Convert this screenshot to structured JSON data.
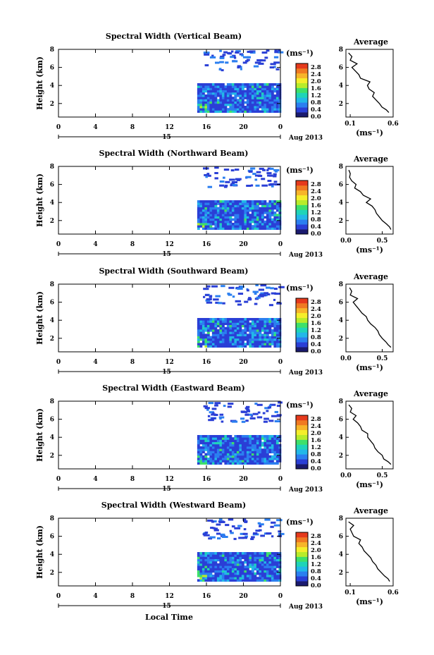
{
  "figure": {
    "xlabel": "Local Time",
    "date_label": "Aug 2013",
    "day_label": "15",
    "colorbar_unit": "(ms⁻¹)",
    "colorbar_ticks": [
      "2.8",
      "2.4",
      "2.0",
      "1.6",
      "1.2",
      "0.8",
      "0.4",
      "0.0"
    ],
    "colormap": [
      "#1a1a6e",
      "#2a3fd6",
      "#2b7ff0",
      "#22b8e8",
      "#1fd4b8",
      "#3ee06a",
      "#b8ec2a",
      "#f5ee2a",
      "#f7b52a",
      "#f07a22",
      "#e53a1c"
    ],
    "average_title": "Average",
    "average_xlabel": "(ms⁻¹)",
    "ylabel": "Height (km)",
    "xticks": [
      "0",
      "4",
      "8",
      "12",
      "16",
      "20",
      "0"
    ]
  },
  "chart_data": [
    {
      "type": "heatmap",
      "title": "Spectral Width (Vertical Beam)",
      "ylabel": "Height (km)",
      "xlabel": "",
      "x_ticks": [
        "0",
        "4",
        "8",
        "12",
        "16",
        "20",
        "0"
      ],
      "y_ticks": [
        "2",
        "4",
        "6",
        "8"
      ],
      "xlim": [
        0,
        24
      ],
      "ylim": [
        0.5,
        8
      ],
      "colorbar_range": [
        0.0,
        2.8
      ],
      "data_start_hour": 15,
      "average": {
        "type": "line",
        "title": "Average",
        "xlabel": "(ms⁻¹)",
        "x_ticks": [
          "0.1",
          "0.6"
        ],
        "x_tick_values": [
          0.1,
          0.6
        ],
        "y_ticks": [
          "2",
          "4",
          "6",
          "8"
        ],
        "xlim": [
          0.05,
          0.6
        ],
        "ylim": [
          0.5,
          8
        ],
        "height": [
          1.0,
          1.3,
          1.6,
          2.0,
          2.4,
          2.8,
          3.2,
          3.6,
          4.0,
          4.4,
          4.8,
          5.2,
          5.6,
          6.0,
          6.4,
          6.8,
          7.2,
          7.6
        ],
        "width": [
          0.55,
          0.52,
          0.47,
          0.44,
          0.4,
          0.36,
          0.38,
          0.32,
          0.3,
          0.33,
          0.22,
          0.2,
          0.16,
          0.12,
          0.18,
          0.1,
          0.12,
          0.08
        ]
      }
    },
    {
      "type": "heatmap",
      "title": "Spectral Width (Northward Beam)",
      "ylabel": "Height (km)",
      "xlabel": "",
      "x_ticks": [
        "0",
        "4",
        "8",
        "12",
        "16",
        "20",
        "0"
      ],
      "y_ticks": [
        "2",
        "4",
        "6",
        "8"
      ],
      "xlim": [
        0,
        24
      ],
      "ylim": [
        0.5,
        8
      ],
      "colorbar_range": [
        0.0,
        2.8
      ],
      "data_start_hour": 15,
      "average": {
        "type": "line",
        "title": "Average",
        "xlabel": "(ms⁻¹)",
        "x_ticks": [
          "0.0",
          "0.5"
        ],
        "x_tick_values": [
          0.0,
          0.5
        ],
        "y_ticks": [
          "2",
          "4",
          "6",
          "8"
        ],
        "xlim": [
          0.0,
          0.65
        ],
        "ylim": [
          0.5,
          8
        ],
        "height": [
          1.0,
          1.3,
          1.6,
          2.0,
          2.4,
          2.8,
          3.2,
          3.6,
          4.0,
          4.4,
          4.8,
          5.2,
          5.6,
          6.0,
          6.4,
          6.8,
          7.2,
          7.6
        ],
        "width": [
          0.62,
          0.6,
          0.56,
          0.5,
          0.46,
          0.42,
          0.4,
          0.36,
          0.28,
          0.34,
          0.24,
          0.2,
          0.12,
          0.14,
          0.08,
          0.05,
          0.06,
          0.04
        ]
      }
    },
    {
      "type": "heatmap",
      "title": "Spectral Width (Southward Beam)",
      "ylabel": "Height (km)",
      "xlabel": "",
      "x_ticks": [
        "0",
        "4",
        "8",
        "12",
        "16",
        "20",
        "0"
      ],
      "y_ticks": [
        "2",
        "4",
        "6",
        "8"
      ],
      "xlim": [
        0,
        24
      ],
      "ylim": [
        0.5,
        8
      ],
      "colorbar_range": [
        0.0,
        2.8
      ],
      "data_start_hour": 15,
      "average": {
        "type": "line",
        "title": "Average",
        "xlabel": "(ms⁻¹)",
        "x_ticks": [
          "0.0",
          "0.5"
        ],
        "x_tick_values": [
          0.0,
          0.5
        ],
        "y_ticks": [
          "2",
          "4",
          "6",
          "8"
        ],
        "xlim": [
          0.0,
          0.65
        ],
        "ylim": [
          0.5,
          8
        ],
        "height": [
          1.0,
          1.3,
          1.6,
          2.0,
          2.4,
          2.8,
          3.2,
          3.6,
          4.0,
          4.4,
          4.8,
          5.2,
          5.6,
          6.0,
          6.4,
          6.8,
          7.2,
          7.6
        ],
        "width": [
          0.62,
          0.58,
          0.55,
          0.5,
          0.46,
          0.44,
          0.4,
          0.34,
          0.3,
          0.28,
          0.22,
          0.18,
          0.14,
          0.1,
          0.16,
          0.06,
          0.08,
          0.05
        ]
      }
    },
    {
      "type": "heatmap",
      "title": "Spectral Width (Eastward Beam)",
      "ylabel": "Height (km)",
      "xlabel": "",
      "x_ticks": [
        "0",
        "4",
        "8",
        "12",
        "16",
        "20",
        "0"
      ],
      "y_ticks": [
        "2",
        "4",
        "6",
        "8"
      ],
      "xlim": [
        0,
        24
      ],
      "ylim": [
        0.5,
        8
      ],
      "colorbar_range": [
        0.0,
        2.8
      ],
      "data_start_hour": 15,
      "average": {
        "type": "line",
        "title": "Average",
        "xlabel": "(ms⁻¹)",
        "x_ticks": [
          "0.0",
          "0.5"
        ],
        "x_tick_values": [
          0.0,
          0.5
        ],
        "y_ticks": [
          "2",
          "4",
          "6",
          "8"
        ],
        "xlim": [
          0.0,
          0.65
        ],
        "ylim": [
          0.5,
          8
        ],
        "height": [
          1.0,
          1.3,
          1.6,
          2.0,
          2.4,
          2.8,
          3.2,
          3.6,
          4.0,
          4.4,
          4.8,
          5.2,
          5.6,
          6.0,
          6.4,
          6.8,
          7.2,
          7.6
        ],
        "width": [
          0.62,
          0.58,
          0.52,
          0.5,
          0.44,
          0.4,
          0.38,
          0.34,
          0.3,
          0.3,
          0.22,
          0.2,
          0.16,
          0.1,
          0.14,
          0.06,
          0.08,
          0.04
        ]
      }
    },
    {
      "type": "heatmap",
      "title": "Spectral Width (Westward Beam)",
      "ylabel": "Height (km)",
      "xlabel": "Local Time",
      "x_ticks": [
        "0",
        "4",
        "8",
        "12",
        "16",
        "20",
        "0"
      ],
      "y_ticks": [
        "2",
        "4",
        "6",
        "8"
      ],
      "xlim": [
        0,
        24
      ],
      "ylim": [
        0.5,
        8
      ],
      "colorbar_range": [
        0.0,
        2.8
      ],
      "data_start_hour": 15,
      "average": {
        "type": "line",
        "title": "Average",
        "xlabel": "(ms⁻¹)",
        "x_ticks": [
          "0.1",
          "0.6"
        ],
        "x_tick_values": [
          0.1,
          0.6
        ],
        "y_ticks": [
          "2",
          "4",
          "6",
          "8"
        ],
        "xlim": [
          0.05,
          0.6
        ],
        "ylim": [
          0.5,
          8
        ],
        "height": [
          1.0,
          1.3,
          1.6,
          2.0,
          2.4,
          2.8,
          3.2,
          3.6,
          4.0,
          4.4,
          4.8,
          5.2,
          5.6,
          6.0,
          6.4,
          6.8,
          7.2,
          7.6
        ],
        "width": [
          0.56,
          0.54,
          0.5,
          0.46,
          0.42,
          0.4,
          0.36,
          0.34,
          0.3,
          0.26,
          0.24,
          0.2,
          0.22,
          0.14,
          0.12,
          0.1,
          0.14,
          0.08
        ]
      }
    }
  ]
}
